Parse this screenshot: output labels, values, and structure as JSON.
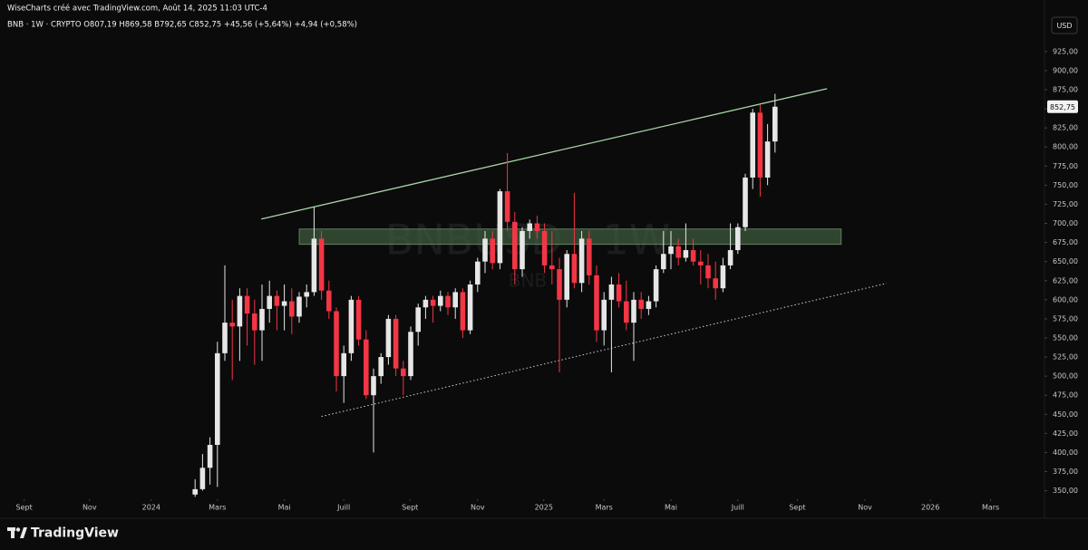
{
  "chart_data": {
    "type": "candlestick",
    "title": "WiseCharts créé avec TradingView.com, Août 14, 2025 11:03 UTC-4",
    "subtitle": "BNB · 1W · CRYPTO  O807,19 H869,58 B792,65 C852,75 +45,56 (+5,64%) +4,94 (+0,58%)",
    "currency": "USD",
    "watermark": "BNBUSD · 1W",
    "watermark_sub": "BNB",
    "brand": "TradingView",
    "up_color": "#e6e6e6",
    "down_color": "#f23645",
    "x": [
      26,
      27,
      28,
      29,
      30,
      31,
      32,
      33,
      34,
      35,
      36,
      37,
      38,
      39,
      40,
      41,
      42,
      43,
      44,
      45,
      46,
      47,
      48,
      49,
      50,
      51,
      52,
      53,
      54,
      55,
      56,
      57,
      58,
      59,
      60,
      61,
      62,
      63,
      64,
      65,
      66,
      67,
      68,
      69,
      70,
      71,
      72,
      73,
      74,
      75,
      76,
      77,
      78,
      79,
      80,
      81,
      82,
      83,
      84,
      85,
      86,
      87,
      88,
      89,
      90,
      91,
      92,
      93,
      94,
      95,
      96,
      97,
      98,
      99,
      100,
      101,
      102,
      103,
      104
    ],
    "open": [
      345,
      352,
      380,
      410,
      530,
      570,
      565,
      605,
      582,
      560,
      588,
      605,
      592,
      598,
      578,
      604,
      610,
      680,
      612,
      585,
      500,
      530,
      600,
      548,
      475,
      500,
      525,
      575,
      510,
      500,
      558,
      590,
      600,
      592,
      605,
      590,
      610,
      560,
      620,
      650,
      680,
      648,
      742,
      702,
      640,
      690,
      700,
      690,
      645,
      640,
      600,
      660,
      622,
      680,
      632,
      560,
      600,
      620,
      598,
      570,
      600,
      588,
      598,
      640,
      660,
      670,
      655,
      665,
      650,
      645,
      628,
      615,
      645,
      665,
      695,
      760,
      845,
      760,
      807.19
    ],
    "high": [
      365,
      398,
      420,
      545,
      645,
      600,
      615,
      615,
      600,
      620,
      625,
      612,
      620,
      615,
      610,
      620,
      722,
      690,
      625,
      590,
      540,
      605,
      605,
      560,
      510,
      530,
      580,
      580,
      520,
      565,
      595,
      605,
      605,
      612,
      610,
      615,
      615,
      625,
      655,
      690,
      690,
      745,
      792,
      715,
      695,
      705,
      710,
      700,
      690,
      655,
      665,
      740,
      690,
      690,
      645,
      610,
      630,
      635,
      625,
      610,
      610,
      605,
      645,
      690,
      690,
      680,
      700,
      680,
      665,
      660,
      650,
      655,
      700,
      700,
      765,
      850,
      855,
      830,
      869.58
    ],
    "low": [
      342,
      350,
      358,
      355,
      520,
      495,
      520,
      540,
      515,
      520,
      570,
      560,
      560,
      555,
      570,
      590,
      605,
      600,
      575,
      480,
      465,
      520,
      540,
      470,
      400,
      490,
      515,
      500,
      475,
      495,
      540,
      575,
      570,
      585,
      580,
      575,
      550,
      555,
      610,
      635,
      640,
      640,
      690,
      620,
      630,
      680,
      680,
      635,
      620,
      505,
      590,
      615,
      610,
      620,
      545,
      540,
      505,
      590,
      560,
      520,
      575,
      580,
      590,
      635,
      640,
      645,
      650,
      645,
      620,
      615,
      600,
      610,
      640,
      660,
      690,
      745,
      735,
      750,
      792.65
    ],
    "close": [
      352,
      380,
      410,
      530,
      570,
      565,
      605,
      582,
      560,
      588,
      605,
      592,
      598,
      578,
      604,
      610,
      680,
      612,
      585,
      500,
      530,
      600,
      548,
      475,
      500,
      525,
      575,
      510,
      500,
      558,
      590,
      600,
      592,
      605,
      590,
      610,
      560,
      620,
      650,
      680,
      648,
      742,
      702,
      640,
      690,
      700,
      690,
      645,
      640,
      600,
      660,
      622,
      680,
      632,
      560,
      600,
      620,
      598,
      570,
      600,
      588,
      598,
      640,
      660,
      670,
      655,
      665,
      650,
      645,
      628,
      615,
      645,
      665,
      695,
      760,
      845,
      760,
      807.19,
      852.75
    ],
    "last_price": {
      "value": 852.75,
      "label": "852,75"
    },
    "xlim": [
      0,
      140
    ],
    "xticks": [
      {
        "value": 3.0,
        "label": "Sept"
      },
      {
        "value": 11.8,
        "label": "Nov"
      },
      {
        "value": 20.1,
        "label": "2024"
      },
      {
        "value": 29.0,
        "label": "Mars"
      },
      {
        "value": 38.0,
        "label": "Mai"
      },
      {
        "value": 46.0,
        "label": "Juill"
      },
      {
        "value": 54.9,
        "label": "Sept"
      },
      {
        "value": 64.0,
        "label": "Nov"
      },
      {
        "value": 72.9,
        "label": "2025"
      },
      {
        "value": 81.0,
        "label": "Mars"
      },
      {
        "value": 90.0,
        "label": "Mai"
      },
      {
        "value": 99.0,
        "label": "Juill"
      },
      {
        "value": 107.0,
        "label": "Sept"
      },
      {
        "value": 116.1,
        "label": "Nov"
      },
      {
        "value": 124.9,
        "label": "2026"
      },
      {
        "value": 133.0,
        "label": "Mars"
      }
    ],
    "ylim": [
      340,
      945
    ],
    "yticks": [
      {
        "value": 350,
        "label": "350,00"
      },
      {
        "value": 375,
        "label": "375,00"
      },
      {
        "value": 400,
        "label": "400,00"
      },
      {
        "value": 425,
        "label": "425,00"
      },
      {
        "value": 450,
        "label": "450,00"
      },
      {
        "value": 475,
        "label": "475,00"
      },
      {
        "value": 500,
        "label": "500,00"
      },
      {
        "value": 525,
        "label": "525,00"
      },
      {
        "value": 550,
        "label": "550,00"
      },
      {
        "value": 575,
        "label": "575,00"
      },
      {
        "value": 600,
        "label": "600,00"
      },
      {
        "value": 625,
        "label": "625,00"
      },
      {
        "value": 650,
        "label": "650,00"
      },
      {
        "value": 675,
        "label": "675,00"
      },
      {
        "value": 700,
        "label": "700,00"
      },
      {
        "value": 725,
        "label": "725,00"
      },
      {
        "value": 750,
        "label": "750,00"
      },
      {
        "value": 775,
        "label": "775,00"
      },
      {
        "value": 800,
        "label": "800,00"
      },
      {
        "value": 825,
        "label": "825,00"
      },
      {
        "value": 850,
        "label": "850,00"
      },
      {
        "value": 875,
        "label": "875,00"
      },
      {
        "value": 900,
        "label": "900,00"
      },
      {
        "value": 925,
        "label": "925,00"
      }
    ],
    "annotations": [
      {
        "type": "line",
        "x": [
          34.9,
          111
        ],
        "y": [
          705.7,
          876.4
        ],
        "color": "#a8d5a8",
        "style": "solid"
      },
      {
        "type": "line",
        "x": [
          43,
          119
        ],
        "y": [
          447.2,
          621.5
        ],
        "color": "#d0d0d0",
        "style": "dotted"
      },
      {
        "type": "zone",
        "x": [
          40,
          112.9
        ],
        "y": [
          672.5,
          692.6
        ],
        "color": "#3d5a3d"
      }
    ]
  }
}
